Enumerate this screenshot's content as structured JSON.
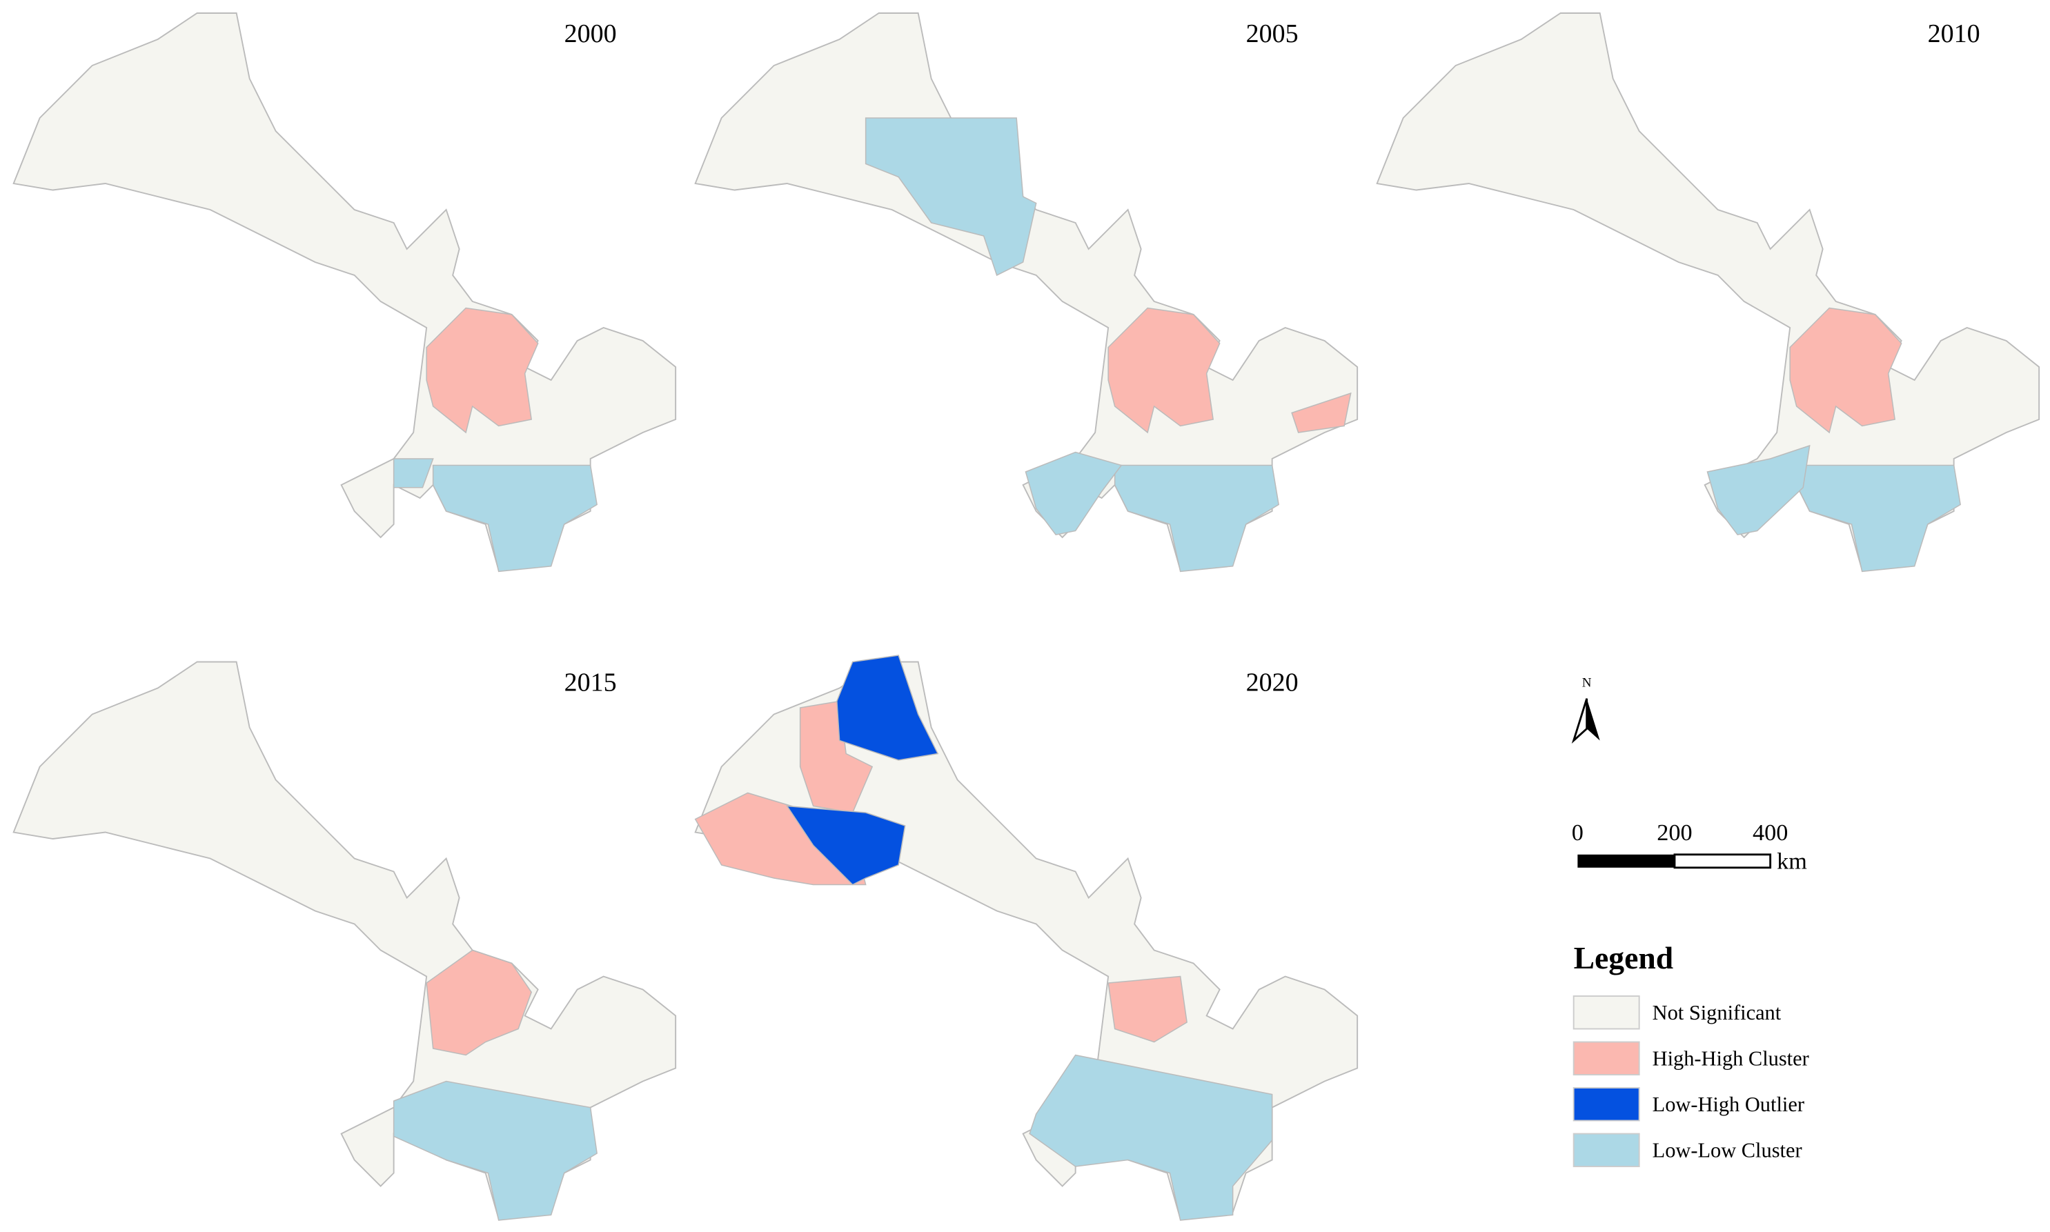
{
  "panels": [
    {
      "year": "2000"
    },
    {
      "year": "2005"
    },
    {
      "year": "2010"
    },
    {
      "year": "2015"
    },
    {
      "year": "2020"
    }
  ],
  "north": "N",
  "scale_bar": {
    "ticks": [
      0,
      200,
      400
    ],
    "unit": "km"
  },
  "legend": {
    "title": "Legend",
    "items": [
      {
        "label": "Not Significant",
        "color": "#f5f5f0"
      },
      {
        "label": "High-High Cluster",
        "color": "#fbb8b0"
      },
      {
        "label": "Low-High Outlier",
        "color": "#0451e0"
      },
      {
        "label": "Low-Low Cluster",
        "color": "#acd8e6"
      }
    ]
  }
}
